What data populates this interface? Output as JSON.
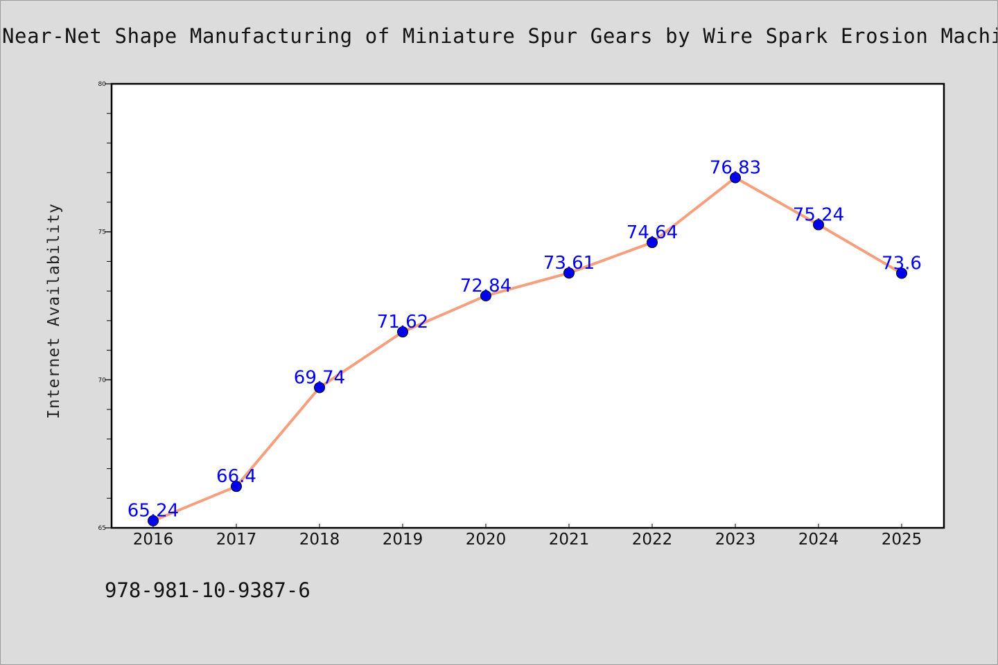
{
  "chart_data": {
    "type": "line",
    "title": "Near-Net Shape Manufacturing of Miniature Spur Gears by Wire Spark Erosion Machi",
    "xlabel": "",
    "ylabel": "Internet Availability",
    "ylim": [
      65,
      80
    ],
    "y_ticks": [
      "65",
      "70",
      "75",
      "80"
    ],
    "categories": [
      "2016",
      "2017",
      "2018",
      "2019",
      "2020",
      "2021",
      "2022",
      "2023",
      "2024",
      "2025"
    ],
    "series": [
      {
        "values": [
          65.24,
          66.4,
          69.74,
          71.62,
          72.84,
          73.61,
          74.64,
          76.83,
          75.24,
          73.6
        ],
        "labels": [
          "65.24",
          "66.4",
          "69.74",
          "71.62",
          "72.84",
          "73.61",
          "74.64",
          "76.83",
          "75.24",
          "73.6"
        ]
      }
    ],
    "grid": false,
    "line_color": "#f4a07e",
    "marker_color": "#0000ee",
    "label_color": "#0000ee"
  },
  "footer": {
    "isbn": "978-981-10-9387-6"
  }
}
